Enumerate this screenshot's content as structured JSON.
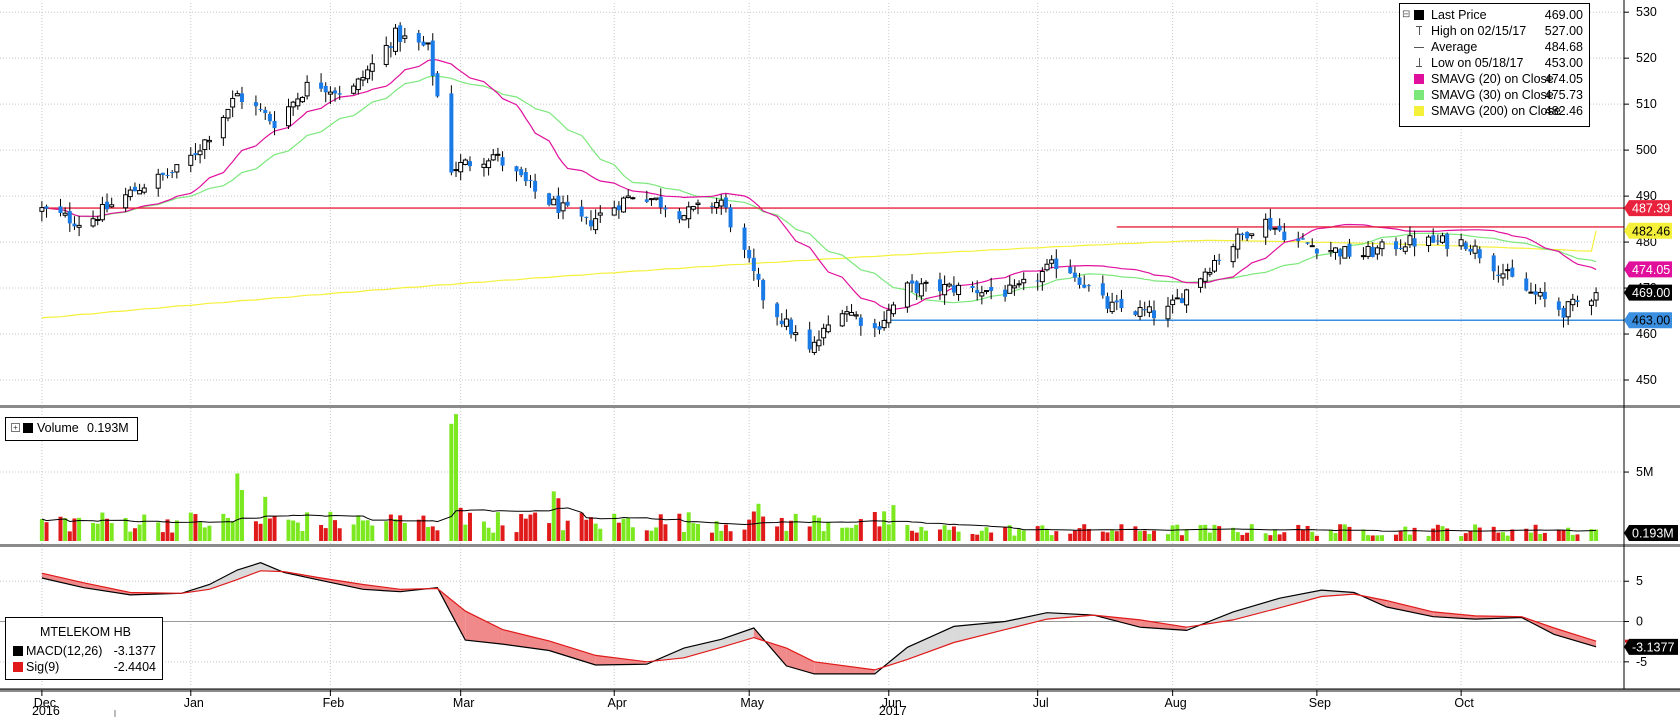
{
  "chart_data": [
    {
      "type": "candlestick",
      "title": "",
      "ylim": [
        445,
        532
      ],
      "y_ticks": [
        450,
        460,
        470,
        480,
        490,
        500,
        510,
        520,
        530
      ],
      "up_color": "#000000",
      "down_color": "#1a7ae6",
      "legend": {
        "placement": "top-right",
        "items": [
          {
            "label": "Last Price",
            "value": "469.00",
            "swatch": "#000000",
            "marker": "square"
          },
          {
            "label": "High on 02/15/17",
            "value": "527.00",
            "swatch": "#555555",
            "marker": "high"
          },
          {
            "label": "Average",
            "value": "484.68",
            "swatch": "#555555",
            "marker": "avg"
          },
          {
            "label": "Low on 05/18/17",
            "value": "453.00",
            "swatch": "#555555",
            "marker": "low"
          },
          {
            "label": "SMAVG (20) on Close",
            "value": "474.05",
            "swatch": "#e0109c",
            "marker": "square"
          },
          {
            "label": "SMAVG (30) on Close",
            "value": "475.73",
            "swatch": "#7ce87c",
            "marker": "square"
          },
          {
            "label": "SMAVG (200) on Close",
            "value": "482.46",
            "swatch": "#f5f03a",
            "marker": "square"
          }
        ]
      },
      "price_tags": [
        {
          "text": "487.39",
          "value": 487.39,
          "color": "#e8213c",
          "text_color": "#ffffff"
        },
        {
          "text": "482.46",
          "value": 482.46,
          "color": "#f5f03a",
          "text_color": "#000000"
        },
        {
          "text": "474.05",
          "value": 474.05,
          "color": "#e0109c",
          "text_color": "#ffffff"
        },
        {
          "text": "469.00",
          "value": 469.0,
          "color": "#000000",
          "text_color": "#ffffff"
        },
        {
          "text": "463.00",
          "value": 463.0,
          "color": "#3a8fe0",
          "text_color": "#000000"
        }
      ],
      "hlines": [
        {
          "value": 487.39,
          "color": "#e8213c",
          "from_date": "2016-12-01",
          "to_date": "2017-10-31"
        },
        {
          "value": 483.3,
          "color": "#e8213c",
          "from_date": "2017-07-20",
          "to_date": "2017-10-31"
        },
        {
          "value": 463.0,
          "color": "#3a8fe0",
          "from_date": "2017-05-31",
          "to_date": "2017-10-31"
        }
      ],
      "anchors": [
        {
          "date": "2016-12-01",
          "close": 487
        },
        {
          "date": "2016-12-10",
          "close": 484
        },
        {
          "date": "2016-12-22",
          "close": 492
        },
        {
          "date": "2016-12-31",
          "close": 496
        },
        {
          "date": "2017-01-05",
          "close": 502
        },
        {
          "date": "2017-01-12",
          "close": 512
        },
        {
          "date": "2017-01-20",
          "close": 506
        },
        {
          "date": "2017-01-28",
          "close": 515
        },
        {
          "date": "2017-02-05",
          "close": 512
        },
        {
          "date": "2017-02-15",
          "close": 525
        },
        {
          "date": "2017-02-22",
          "close": 522
        },
        {
          "date": "2017-02-27",
          "close": 496
        },
        {
          "date": "2017-03-08",
          "close": 499
        },
        {
          "date": "2017-03-18",
          "close": 490
        },
        {
          "date": "2017-03-28",
          "close": 484
        },
        {
          "date": "2017-04-08",
          "close": 491
        },
        {
          "date": "2017-04-18",
          "close": 486
        },
        {
          "date": "2017-04-26",
          "close": 489
        },
        {
          "date": "2017-05-05",
          "close": 468
        },
        {
          "date": "2017-05-15",
          "close": 456
        },
        {
          "date": "2017-05-22",
          "close": 466
        },
        {
          "date": "2017-05-29",
          "close": 461
        },
        {
          "date": "2017-06-05",
          "close": 470
        },
        {
          "date": "2017-06-15",
          "close": 470
        },
        {
          "date": "2017-06-28",
          "close": 469
        },
        {
          "date": "2017-07-08",
          "close": 476
        },
        {
          "date": "2017-07-18",
          "close": 466
        },
        {
          "date": "2017-07-30",
          "close": 464
        },
        {
          "date": "2017-08-10",
          "close": 476
        },
        {
          "date": "2017-08-20",
          "close": 485
        },
        {
          "date": "2017-08-28",
          "close": 480
        },
        {
          "date": "2017-09-10",
          "close": 477
        },
        {
          "date": "2017-09-20",
          "close": 480
        },
        {
          "date": "2017-10-03",
          "close": 480
        },
        {
          "date": "2017-10-15",
          "close": 470
        },
        {
          "date": "2017-10-24",
          "close": 465
        },
        {
          "date": "2017-10-31",
          "close": 469
        }
      ],
      "sma_endpoints": {
        "sma20_last": 474.05,
        "sma30_last": 475.73,
        "sma200_last": 482.46,
        "sma200_first": 463.5
      }
    },
    {
      "type": "bar",
      "legend": {
        "label": "Volume",
        "value": "0.193M"
      },
      "y_ticks_label": "5M",
      "y_tick_value": 5,
      "ylim": [
        0,
        9.5
      ],
      "up_color": "#7ce820",
      "down_color": "#e01a1a",
      "avg_line_color": "#000000",
      "price_tags": [
        {
          "text": "0.193M",
          "color": "#000000",
          "text_color": "#ffffff"
        }
      ],
      "spikes": [
        {
          "date": "2017-01-12",
          "value": 4.9,
          "up": true
        },
        {
          "date": "2017-01-13",
          "value": 3.7,
          "up": true
        },
        {
          "date": "2017-01-18",
          "value": 3.2,
          "up": true
        },
        {
          "date": "2017-02-27",
          "value": 8.5,
          "up": true
        },
        {
          "date": "2017-02-28",
          "value": 9.2,
          "up": true
        },
        {
          "date": "2017-03-01",
          "value": 2.4,
          "up": false
        },
        {
          "date": "2017-03-21",
          "value": 3.6,
          "up": true
        },
        {
          "date": "2017-03-22",
          "value": 3.1,
          "up": false
        },
        {
          "date": "2017-05-04",
          "value": 2.7,
          "up": true
        },
        {
          "date": "2017-06-02",
          "value": 2.6,
          "up": true
        }
      ]
    },
    {
      "type": "line",
      "legend": {
        "title": "MTELEKOM HB",
        "items": [
          {
            "label": "MACD(12,26)",
            "value": "-3.1377",
            "swatch": "#000000"
          },
          {
            "label": "Sig(9)",
            "value": "-2.4404",
            "swatch": "#e01a1a"
          }
        ]
      },
      "ylim": [
        -8,
        9
      ],
      "y_ticks": [
        5,
        0,
        -5
      ],
      "y_tick_labels": [
        "5",
        "0",
        "-5"
      ],
      "zero_line": true,
      "price_tags": [
        {
          "text": "-3.1377",
          "value": -3.1377,
          "color": "#000000",
          "text_color": "#ffffff"
        }
      ],
      "fill_colors": {
        "macd_above": "#dadada",
        "macd_below": "#f08a8a"
      },
      "series": [
        {
          "name": "MACD(12,26)",
          "color": "#000000",
          "points": [
            [
              "2016-12-01",
              5.4
            ],
            [
              "2016-12-10",
              4.2
            ],
            [
              "2016-12-20",
              3.3
            ],
            [
              "2016-12-31",
              3.5
            ],
            [
              "2017-01-06",
              4.6
            ],
            [
              "2017-01-12",
              6.4
            ],
            [
              "2017-01-17",
              7.3
            ],
            [
              "2017-01-22",
              6.1
            ],
            [
              "2017-01-30",
              5.1
            ],
            [
              "2017-02-08",
              4.0
            ],
            [
              "2017-02-16",
              3.7
            ],
            [
              "2017-02-24",
              4.2
            ],
            [
              "2017-03-02",
              -2.3
            ],
            [
              "2017-03-10",
              -2.8
            ],
            [
              "2017-03-20",
              -3.6
            ],
            [
              "2017-03-30",
              -5.4
            ],
            [
              "2017-04-10",
              -5.3
            ],
            [
              "2017-04-18",
              -3.3
            ],
            [
              "2017-04-26",
              -2.2
            ],
            [
              "2017-05-03",
              -0.8
            ],
            [
              "2017-05-10",
              -5.5
            ],
            [
              "2017-05-16",
              -6.5
            ],
            [
              "2017-05-29",
              -6.5
            ],
            [
              "2017-06-05",
              -3.2
            ],
            [
              "2017-06-15",
              -0.6
            ],
            [
              "2017-06-26",
              0.0
            ],
            [
              "2017-07-05",
              1.1
            ],
            [
              "2017-07-15",
              0.8
            ],
            [
              "2017-07-25",
              -0.7
            ],
            [
              "2017-08-04",
              -1.1
            ],
            [
              "2017-08-14",
              1.2
            ],
            [
              "2017-08-24",
              2.9
            ],
            [
              "2017-09-02",
              3.9
            ],
            [
              "2017-09-09",
              3.6
            ],
            [
              "2017-09-16",
              1.8
            ],
            [
              "2017-09-26",
              0.6
            ],
            [
              "2017-10-05",
              0.3
            ],
            [
              "2017-10-15",
              0.5
            ],
            [
              "2017-10-22",
              -1.6
            ],
            [
              "2017-10-31",
              -3.14
            ]
          ]
        },
        {
          "name": "Sig(9)",
          "color": "#e01a1a",
          "points": [
            [
              "2016-12-01",
              6.0
            ],
            [
              "2016-12-10",
              4.8
            ],
            [
              "2016-12-20",
              3.6
            ],
            [
              "2016-12-31",
              3.5
            ],
            [
              "2017-01-06",
              4.0
            ],
            [
              "2017-01-12",
              5.2
            ],
            [
              "2017-01-17",
              6.3
            ],
            [
              "2017-01-22",
              6.2
            ],
            [
              "2017-01-30",
              5.4
            ],
            [
              "2017-02-08",
              4.6
            ],
            [
              "2017-02-16",
              4.0
            ],
            [
              "2017-02-24",
              4.1
            ],
            [
              "2017-03-02",
              1.3
            ],
            [
              "2017-03-10",
              -1.0
            ],
            [
              "2017-03-20",
              -2.4
            ],
            [
              "2017-03-30",
              -4.2
            ],
            [
              "2017-04-10",
              -5.0
            ],
            [
              "2017-04-18",
              -4.5
            ],
            [
              "2017-04-26",
              -3.2
            ],
            [
              "2017-05-03",
              -2.0
            ],
            [
              "2017-05-10",
              -3.3
            ],
            [
              "2017-05-16",
              -5.0
            ],
            [
              "2017-05-29",
              -6.0
            ],
            [
              "2017-06-05",
              -4.7
            ],
            [
              "2017-06-15",
              -2.6
            ],
            [
              "2017-06-26",
              -1.0
            ],
            [
              "2017-07-05",
              0.3
            ],
            [
              "2017-07-15",
              0.8
            ],
            [
              "2017-07-25",
              0.2
            ],
            [
              "2017-08-04",
              -0.7
            ],
            [
              "2017-08-14",
              0.2
            ],
            [
              "2017-08-24",
              1.7
            ],
            [
              "2017-09-02",
              3.1
            ],
            [
              "2017-09-09",
              3.4
            ],
            [
              "2017-09-16",
              2.6
            ],
            [
              "2017-09-26",
              1.2
            ],
            [
              "2017-10-05",
              0.7
            ],
            [
              "2017-10-15",
              0.6
            ],
            [
              "2017-10-22",
              -0.8
            ],
            [
              "2017-10-31",
              -2.44
            ]
          ]
        }
      ]
    }
  ],
  "x_axis": {
    "months": [
      {
        "label": "Dec",
        "date": "2016-12-01"
      },
      {
        "label": "Jan",
        "date": "2017-01-02"
      },
      {
        "label": "Feb",
        "date": "2017-02-01"
      },
      {
        "label": "Mar",
        "date": "2017-03-01"
      },
      {
        "label": "Apr",
        "date": "2017-04-03"
      },
      {
        "label": "May",
        "date": "2017-05-02"
      },
      {
        "label": "Jun",
        "date": "2017-06-01"
      },
      {
        "label": "Jul",
        "date": "2017-07-03"
      },
      {
        "label": "Aug",
        "date": "2017-08-01"
      },
      {
        "label": "Sep",
        "date": "2017-09-01"
      },
      {
        "label": "Oct",
        "date": "2017-10-02"
      }
    ],
    "years": [
      {
        "label": "2016",
        "date": "2016-12-01"
      },
      {
        "label": "2017",
        "date": "2017-06-01"
      }
    ]
  },
  "colors": {
    "grid": "#c8c8c8",
    "pane_separator": "#8a8a8a",
    "axis_text": "#000000",
    "background": "#ffffff"
  }
}
